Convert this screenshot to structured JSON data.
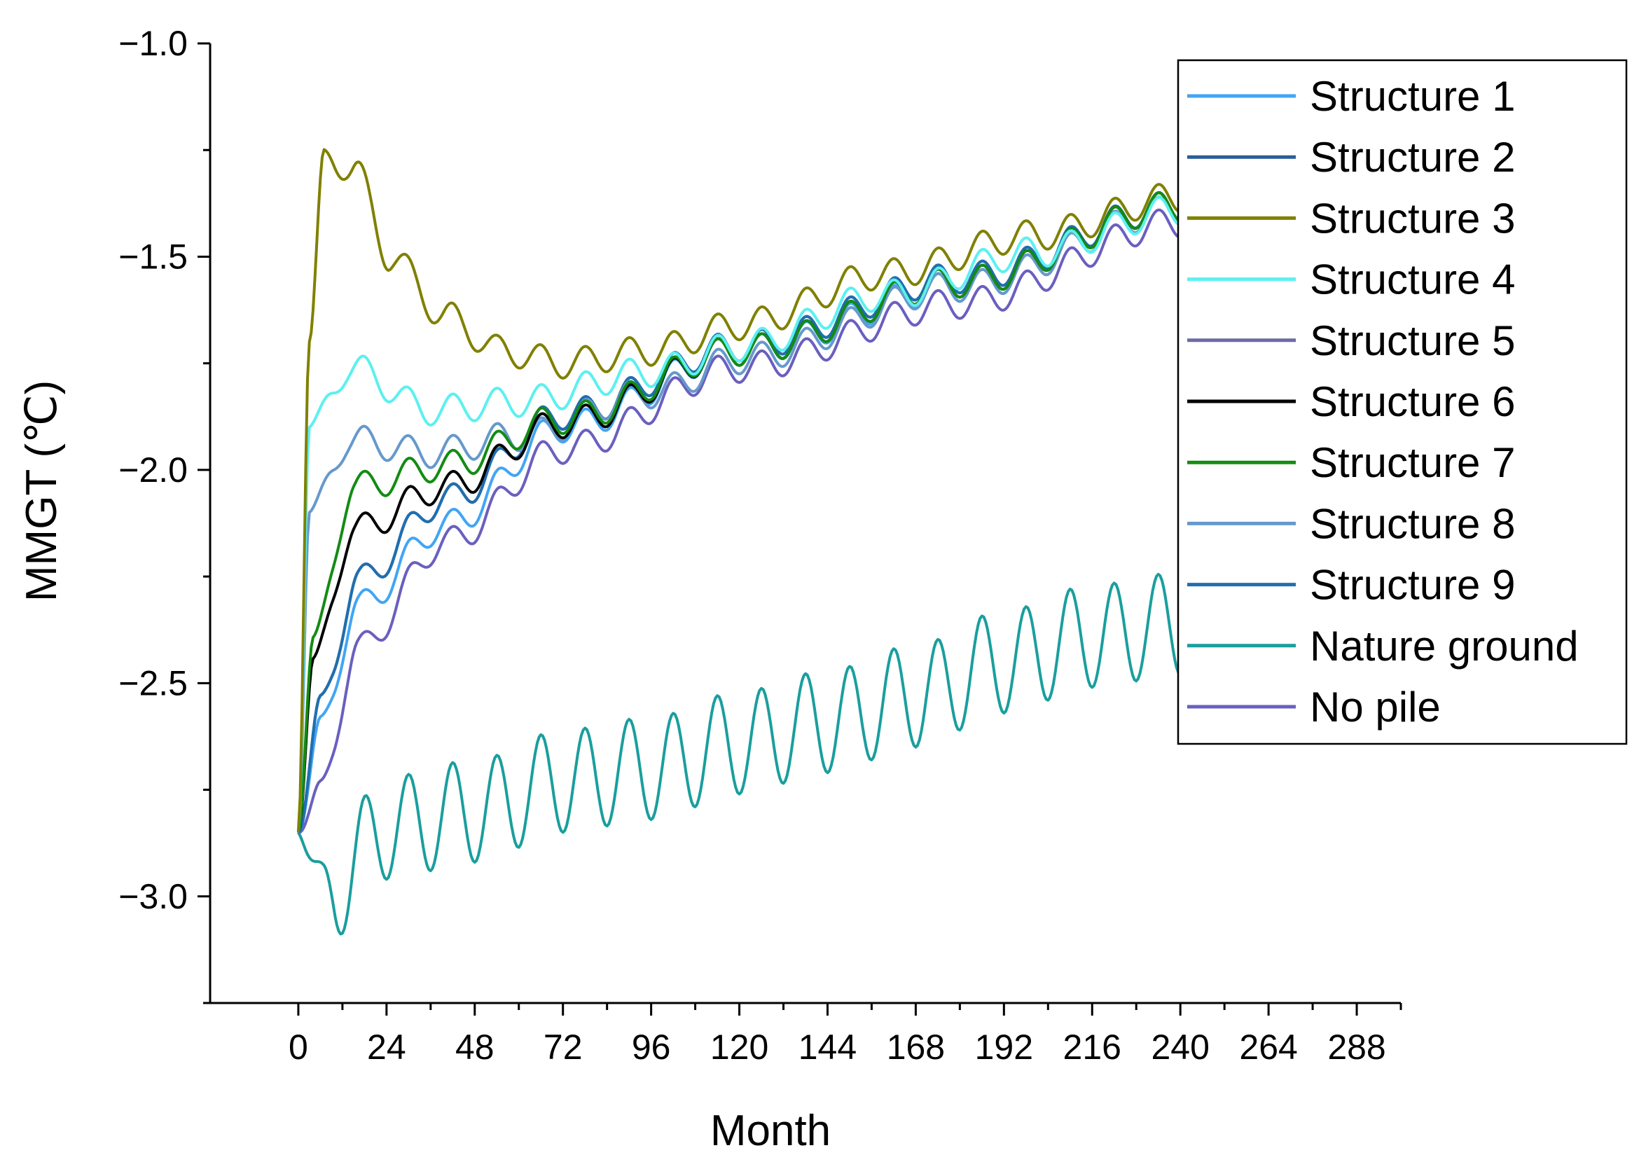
{
  "chart_data": {
    "type": "line",
    "title": "",
    "xlabel": "Month",
    "ylabel": "MMGT (℃)",
    "xlim": [
      -24,
      300
    ],
    "ylim": [
      -3.25,
      -1.0
    ],
    "x_ticks": [
      0,
      24,
      48,
      72,
      96,
      120,
      144,
      168,
      192,
      216,
      240,
      264,
      288
    ],
    "x_tick_labels": [
      "0",
      "24",
      "48",
      "72",
      "96",
      "120",
      "144",
      "168",
      "192",
      "216",
      "240",
      "264",
      "288"
    ],
    "y_ticks": [
      -1.0,
      -1.5,
      -2.0,
      -2.5,
      -3.0
    ],
    "y_tick_labels": [
      "−1.0",
      "−1.5",
      "−2.0",
      "−2.5",
      "−3.0"
    ],
    "grid": false,
    "legend_position": "top-right",
    "x_range": [
      0,
      240
    ],
    "period_months": 12,
    "series": [
      {
        "name": "Structure 1",
        "color": "#42a5f5",
        "start": -2.85,
        "keypoints": [
          [
            0,
            -2.85
          ],
          [
            6,
            -2.6
          ],
          [
            16,
            -2.32
          ],
          [
            40,
            -2.13
          ],
          [
            72,
            -1.9
          ],
          [
            120,
            -1.72
          ],
          [
            180,
            -1.57
          ],
          [
            240,
            -1.39
          ]
        ],
        "amplitude": 0.035
      },
      {
        "name": "Structure 2",
        "color": "#2b5d9a",
        "start": -2.85,
        "keypoints": [
          [
            0,
            -2.85
          ],
          [
            6,
            -2.55
          ],
          [
            16,
            -2.26
          ],
          [
            40,
            -2.07
          ],
          [
            72,
            -1.87
          ],
          [
            120,
            -1.71
          ],
          [
            180,
            -1.55
          ],
          [
            240,
            -1.38
          ]
        ],
        "amplitude": 0.035
      },
      {
        "name": "Structure 3",
        "color": "#808000",
        "start": -2.85,
        "keypoints": [
          [
            0,
            -2.85
          ],
          [
            3,
            -1.7
          ],
          [
            7,
            -1.27
          ],
          [
            15,
            -1.29
          ],
          [
            25,
            -1.5
          ],
          [
            40,
            -1.64
          ],
          [
            55,
            -1.72
          ],
          [
            72,
            -1.75
          ],
          [
            96,
            -1.72
          ],
          [
            120,
            -1.66
          ],
          [
            160,
            -1.54
          ],
          [
            200,
            -1.45
          ],
          [
            240,
            -1.36
          ]
        ],
        "amplitude": 0.035
      },
      {
        "name": "Structure 4",
        "color": "#5cf0f0",
        "start": -2.85,
        "keypoints": [
          [
            0,
            -2.85
          ],
          [
            3,
            -1.9
          ],
          [
            14,
            -1.76
          ],
          [
            36,
            -1.86
          ],
          [
            60,
            -1.84
          ],
          [
            96,
            -1.77
          ],
          [
            120,
            -1.71
          ],
          [
            160,
            -1.59
          ],
          [
            200,
            -1.49
          ],
          [
            240,
            -1.39
          ]
        ],
        "amplitude": 0.035
      },
      {
        "name": "Structure 5",
        "color": "#6b6ba8",
        "start": -2.85,
        "keypoints": [
          [
            0,
            -2.85
          ],
          [
            6,
            -2.55
          ],
          [
            16,
            -2.26
          ],
          [
            40,
            -2.07
          ],
          [
            72,
            -1.87
          ],
          [
            120,
            -1.71
          ],
          [
            180,
            -1.55
          ],
          [
            240,
            -1.38
          ]
        ],
        "amplitude": 0.035
      },
      {
        "name": "Structure 6",
        "color": "#000000",
        "start": -2.85,
        "keypoints": [
          [
            0,
            -2.85
          ],
          [
            4,
            -2.45
          ],
          [
            15,
            -2.14
          ],
          [
            40,
            -2.04
          ],
          [
            72,
            -1.89
          ],
          [
            120,
            -1.72
          ],
          [
            180,
            -1.56
          ],
          [
            240,
            -1.38
          ]
        ],
        "amplitude": 0.035
      },
      {
        "name": "Structure 7",
        "color": "#138c13",
        "start": -2.85,
        "keypoints": [
          [
            0,
            -2.85
          ],
          [
            4,
            -2.4
          ],
          [
            15,
            -2.04
          ],
          [
            40,
            -1.99
          ],
          [
            72,
            -1.88
          ],
          [
            120,
            -1.72
          ],
          [
            180,
            -1.56
          ],
          [
            240,
            -1.38
          ]
        ],
        "amplitude": 0.035
      },
      {
        "name": "Structure 8",
        "color": "#6699cc",
        "start": -2.85,
        "keypoints": [
          [
            0,
            -2.85
          ],
          [
            3,
            -2.1
          ],
          [
            14,
            -1.93
          ],
          [
            36,
            -1.96
          ],
          [
            60,
            -1.92
          ],
          [
            96,
            -1.82
          ],
          [
            120,
            -1.74
          ],
          [
            180,
            -1.57
          ],
          [
            240,
            -1.39
          ]
        ],
        "amplitude": 0.035
      },
      {
        "name": "Structure 9",
        "color": "#1f6fb0",
        "start": -2.85,
        "keypoints": [
          [
            0,
            -2.85
          ],
          [
            6,
            -2.55
          ],
          [
            16,
            -2.26
          ],
          [
            40,
            -2.07
          ],
          [
            72,
            -1.87
          ],
          [
            120,
            -1.71
          ],
          [
            180,
            -1.55
          ],
          [
            240,
            -1.38
          ]
        ],
        "amplitude": 0.035
      },
      {
        "name": "Nature ground",
        "color": "#1a9e9e",
        "start": -2.85,
        "keypoints": [
          [
            0,
            -2.85
          ],
          [
            7,
            -3.0
          ],
          [
            24,
            -2.84
          ],
          [
            48,
            -2.8
          ],
          [
            72,
            -2.73
          ],
          [
            96,
            -2.7
          ],
          [
            120,
            -2.64
          ],
          [
            144,
            -2.59
          ],
          [
            168,
            -2.53
          ],
          [
            192,
            -2.45
          ],
          [
            216,
            -2.39
          ],
          [
            240,
            -2.36
          ]
        ],
        "amplitude": 0.12
      },
      {
        "name": "No pile",
        "color": "#6a5fbf",
        "start": -2.85,
        "keypoints": [
          [
            0,
            -2.85
          ],
          [
            6,
            -2.75
          ],
          [
            16,
            -2.42
          ],
          [
            40,
            -2.17
          ],
          [
            72,
            -1.95
          ],
          [
            120,
            -1.76
          ],
          [
            180,
            -1.61
          ],
          [
            240,
            -1.42
          ]
        ],
        "amplitude": 0.035
      }
    ]
  }
}
